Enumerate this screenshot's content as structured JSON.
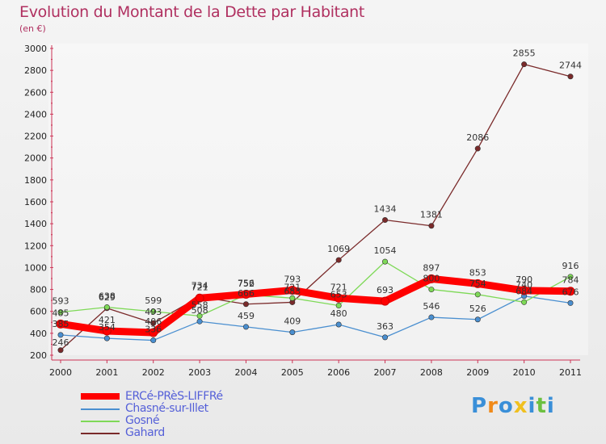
{
  "chart_data": {
    "type": "line",
    "title": "Evolution du Montant de la Dette par Habitant",
    "subtitle": "(en €)",
    "xlabel": "",
    "ylabel": "",
    "ylim": [
      200,
      3000
    ],
    "yticks": [
      "200",
      "400",
      "600",
      "800",
      "1000",
      "1200",
      "1400",
      "1600",
      "1800",
      "2000",
      "2200",
      "2400",
      "2600",
      "2800",
      "3000"
    ],
    "categories": [
      "2000",
      "2001",
      "2002",
      "2003",
      "2004",
      "2005",
      "2006",
      "2007",
      "2008",
      "2009",
      "2010",
      "2011"
    ],
    "series": [
      {
        "name": "Gahard",
        "color": "#7a2a2a",
        "values": [
          246,
          629,
          493,
          734,
          666,
          683,
          1069,
          1434,
          1381,
          2086,
          2855,
          2744
        ]
      },
      {
        "name": "Chasné-sur-Illet",
        "color": "#4a8fd0",
        "values": [
          385,
          354,
          336,
          508,
          459,
          409,
          480,
          363,
          546,
          526,
          740,
          676
        ]
      },
      {
        "name": "Gosné",
        "color": "#7ed957",
        "values": [
          593,
          638,
          599,
          558,
          752,
          721,
          653,
          1054,
          800,
          754,
          684,
          916
        ]
      },
      {
        "name": "ERCé-PRèS-LIFFRé",
        "color": "#ff0000",
        "values": [
          485,
          421,
          406,
          721,
          756,
          793,
          721,
          693,
          897,
          853,
          790,
          784
        ]
      }
    ],
    "legend_order": [
      "ERCé-PRèS-LIFFRé",
      "Chasné-sur-Illet",
      "Gosné",
      "Gahard"
    ],
    "legend_position": "bottom-left"
  },
  "legend": {
    "items": [
      {
        "label": "ERCé-PRèS-LIFFRé",
        "color": "#ff0000"
      },
      {
        "label": "Chasné-sur-Illet",
        "color": "#4a8fd0"
      },
      {
        "label": "Gosné",
        "color": "#7ed957"
      },
      {
        "label": "Gahard",
        "color": "#7a2a2a"
      }
    ]
  },
  "logo": {
    "letters": [
      "P",
      "r",
      "o",
      "x",
      "i",
      "t",
      "i"
    ],
    "colors": [
      "#3a8fd8",
      "#f08a1a",
      "#3a8fd8",
      "#f0c020",
      "#3a8fd8",
      "#6cc040",
      "#3a8fd8"
    ]
  }
}
